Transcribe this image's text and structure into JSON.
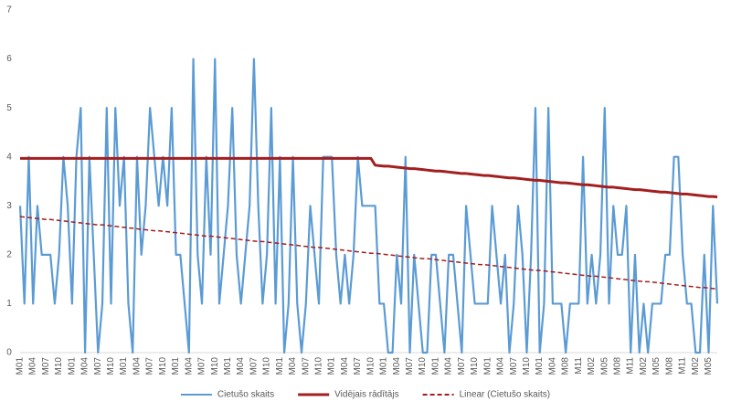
{
  "chart_data": {
    "type": "line",
    "categories": [
      "M01",
      null,
      null,
      "M04",
      null,
      null,
      "M07",
      null,
      null,
      "M10",
      null,
      null,
      "M01",
      null,
      null,
      "M04",
      null,
      null,
      "M07",
      null,
      null,
      "M10",
      null,
      null,
      "M01",
      null,
      null,
      "M04",
      null,
      null,
      "M07",
      null,
      null,
      "M10",
      null,
      null,
      "M01",
      null,
      null,
      "M04",
      null,
      null,
      "M07",
      null,
      null,
      "M10",
      null,
      null,
      "M01",
      null,
      null,
      "M04",
      null,
      null,
      "M07",
      null,
      null,
      "M10",
      null,
      null,
      "M01",
      null,
      null,
      "M04",
      null,
      null,
      "M07",
      null,
      null,
      "M10",
      null,
      null,
      "M01",
      null,
      null,
      "M04",
      null,
      null,
      "M07",
      null,
      null,
      "M10",
      null,
      null,
      "M01",
      null,
      null,
      "M04",
      null,
      null,
      "M07",
      null,
      null,
      "M10",
      null,
      null,
      "M01",
      null,
      null,
      "M04",
      null,
      null,
      "M07",
      null,
      null,
      "M10",
      null,
      null,
      "M01",
      null,
      null,
      "M04",
      null,
      null,
      "M07",
      null,
      null,
      "M10",
      null,
      null,
      "M01",
      null,
      null,
      "M04",
      null,
      null,
      "M08",
      null,
      null,
      "M11",
      null,
      null,
      "M02",
      null,
      null,
      "M05",
      null,
      null,
      "M08",
      null,
      null,
      "M11",
      null,
      null,
      "M02",
      null,
      null,
      "M05",
      null,
      null,
      "M08",
      null,
      null,
      "M11",
      null,
      null,
      "M02",
      null,
      null,
      "M05",
      null,
      null
    ],
    "series": [
      {
        "name": "Cietušo skaits",
        "color": "#5b9bd5",
        "dash": false,
        "values": [
          3,
          1,
          4,
          1,
          3,
          2,
          2,
          2,
          1,
          2,
          4,
          3,
          1,
          4,
          5,
          0,
          4,
          2,
          0,
          1,
          5,
          1,
          5,
          3,
          4,
          1,
          0,
          4,
          2,
          3,
          5,
          4,
          3,
          4,
          3,
          5,
          2,
          2,
          1,
          0,
          6,
          2,
          1,
          4,
          2,
          6,
          1,
          2,
          3,
          5,
          2,
          1,
          2,
          3,
          6,
          3,
          1,
          2,
          5,
          1,
          4,
          0,
          1,
          4,
          1,
          0,
          1,
          3,
          2,
          1,
          4,
          4,
          4,
          2,
          1,
          2,
          1,
          2,
          4,
          3,
          3,
          3,
          3,
          1,
          1,
          0,
          0,
          2,
          1,
          4,
          0,
          2,
          1,
          0,
          0,
          2,
          2,
          1,
          0,
          2,
          2,
          1,
          0,
          3,
          2,
          1,
          1,
          1,
          1,
          3,
          2,
          1,
          2,
          0,
          1,
          3,
          2,
          0,
          2,
          5,
          0,
          1,
          5,
          1,
          1,
          1,
          0,
          1,
          1,
          1,
          4,
          1,
          2,
          1,
          2,
          5,
          1,
          3,
          2,
          2,
          3,
          0,
          2,
          0,
          1,
          0,
          1,
          1,
          1,
          2,
          2,
          4,
          4,
          2,
          1,
          1,
          0,
          0,
          2,
          0,
          3,
          1
        ]
      },
      {
        "name": "Vidējais rādītājs",
        "color": "#a31f1f",
        "dash": false,
        "values": [
          3.97,
          3.97,
          3.97,
          3.97,
          3.97,
          3.97,
          3.97,
          3.97,
          3.97,
          3.97,
          3.97,
          3.97,
          3.97,
          3.97,
          3.97,
          3.97,
          3.97,
          3.97,
          3.97,
          3.97,
          3.97,
          3.97,
          3.97,
          3.97,
          3.97,
          3.97,
          3.97,
          3.97,
          3.97,
          3.97,
          3.97,
          3.97,
          3.97,
          3.97,
          3.97,
          3.97,
          3.97,
          3.97,
          3.97,
          3.97,
          3.97,
          3.97,
          3.97,
          3.97,
          3.97,
          3.97,
          3.97,
          3.97,
          3.97,
          3.97,
          3.97,
          3.97,
          3.97,
          3.97,
          3.97,
          3.97,
          3.97,
          3.97,
          3.97,
          3.97,
          3.97,
          3.97,
          3.97,
          3.97,
          3.97,
          3.97,
          3.97,
          3.97,
          3.97,
          3.97,
          3.97,
          3.97,
          3.97,
          3.97,
          3.97,
          3.97,
          3.97,
          3.97,
          3.97,
          3.97,
          3.97,
          3.97,
          3.83,
          3.82,
          3.81,
          3.81,
          3.8,
          3.79,
          3.78,
          3.77,
          3.76,
          3.76,
          3.75,
          3.74,
          3.73,
          3.72,
          3.71,
          3.71,
          3.7,
          3.69,
          3.68,
          3.67,
          3.66,
          3.66,
          3.65,
          3.64,
          3.63,
          3.62,
          3.62,
          3.61,
          3.6,
          3.59,
          3.58,
          3.57,
          3.57,
          3.56,
          3.55,
          3.54,
          3.53,
          3.52,
          3.52,
          3.51,
          3.5,
          3.49,
          3.48,
          3.47,
          3.47,
          3.46,
          3.45,
          3.44,
          3.43,
          3.43,
          3.42,
          3.41,
          3.4,
          3.39,
          3.38,
          3.38,
          3.37,
          3.36,
          3.35,
          3.34,
          3.33,
          3.33,
          3.32,
          3.31,
          3.3,
          3.29,
          3.28,
          3.28,
          3.27,
          3.26,
          3.25,
          3.24,
          3.24,
          3.23,
          3.22,
          3.21,
          3.2,
          3.19,
          3.19,
          3.18
        ]
      },
      {
        "name": "Linear (Cietušo skaits)",
        "color": "#a31f1f",
        "dash": true,
        "values": [
          2.78,
          2.77,
          2.76,
          2.75,
          2.74,
          2.73,
          2.72,
          2.72,
          2.71,
          2.7,
          2.69,
          2.68,
          2.67,
          2.66,
          2.65,
          2.64,
          2.63,
          2.62,
          2.61,
          2.61,
          2.6,
          2.59,
          2.58,
          2.57,
          2.56,
          2.55,
          2.54,
          2.53,
          2.52,
          2.51,
          2.5,
          2.49,
          2.49,
          2.48,
          2.47,
          2.46,
          2.45,
          2.44,
          2.43,
          2.42,
          2.41,
          2.4,
          2.39,
          2.38,
          2.38,
          2.37,
          2.36,
          2.35,
          2.34,
          2.33,
          2.32,
          2.31,
          2.3,
          2.29,
          2.28,
          2.27,
          2.27,
          2.26,
          2.25,
          2.24,
          2.23,
          2.22,
          2.21,
          2.2,
          2.19,
          2.18,
          2.17,
          2.16,
          2.15,
          2.15,
          2.14,
          2.13,
          2.12,
          2.11,
          2.1,
          2.09,
          2.08,
          2.07,
          2.06,
          2.05,
          2.04,
          2.03,
          2.03,
          2.02,
          2.01,
          2.0,
          1.99,
          1.98,
          1.97,
          1.96,
          1.95,
          1.94,
          1.93,
          1.92,
          1.92,
          1.91,
          1.9,
          1.89,
          1.88,
          1.87,
          1.86,
          1.85,
          1.84,
          1.83,
          1.82,
          1.81,
          1.8,
          1.8,
          1.79,
          1.78,
          1.77,
          1.76,
          1.75,
          1.74,
          1.73,
          1.72,
          1.71,
          1.7,
          1.69,
          1.68,
          1.68,
          1.67,
          1.66,
          1.65,
          1.64,
          1.63,
          1.62,
          1.61,
          1.6,
          1.59,
          1.58,
          1.57,
          1.56,
          1.56,
          1.55,
          1.54,
          1.53,
          1.52,
          1.51,
          1.5,
          1.49,
          1.48,
          1.47,
          1.46,
          1.45,
          1.45,
          1.44,
          1.43,
          1.42,
          1.41,
          1.4,
          1.39,
          1.38,
          1.37,
          1.36,
          1.35,
          1.34,
          1.33,
          1.33,
          1.32,
          1.31,
          1.3
        ]
      }
    ],
    "ylim": [
      0,
      7
    ],
    "yticks": [
      0,
      1,
      2,
      3,
      4,
      5,
      6,
      7
    ],
    "grid": false,
    "legend": "bottom"
  }
}
